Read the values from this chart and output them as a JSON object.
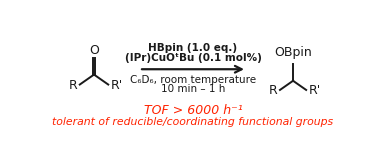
{
  "bg_color": "#ffffff",
  "arrow_color": "#1a1a1a",
  "text_color": "#1a1a1a",
  "red_color": "#ff2200",
  "line1_above": "HBpin (1.0 eq.)",
  "line2_above": "(IPr)CuO",
  "line2_above_italic": "t",
  "line2_above_end": "Bu (0.1 mol%)",
  "line1_below": "C",
  "line1_below_sub": "6",
  "line1_below_cont": "D",
  "line1_below_sub2": "6",
  "line1_below_end": ", room temperature",
  "line2_below": "10 min – 1 h",
  "tof_text": "TOF > 6000 h",
  "tof_sup": "−1",
  "tolerant_text": "tolerant of reducible/coordinating functional groups",
  "figsize": [
    3.78,
    1.47
  ],
  "dpi": 100
}
